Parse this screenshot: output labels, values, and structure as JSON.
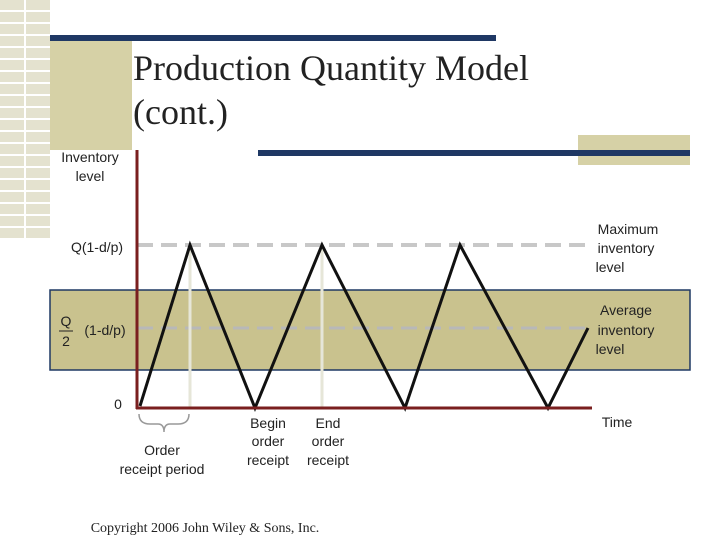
{
  "title": {
    "lines": [
      "Production Quantity Model",
      "(cont.)"
    ]
  },
  "y_axis": {
    "label": [
      "Inventory",
      "level"
    ]
  },
  "levels": {
    "max": "Q(1-d/p)",
    "avg_numerator": "Q",
    "avg_denominator": "2",
    "avg_factor": "(1-d/p)",
    "zero": "0"
  },
  "annotations": {
    "maximum": [
      "Maximum",
      "inventory",
      "level"
    ],
    "average": [
      "Average",
      "inventory",
      "level"
    ],
    "time": "Time",
    "begin": [
      "Begin",
      "order",
      "receipt"
    ],
    "end": [
      "End",
      "order",
      "receipt"
    ],
    "period": [
      "Order",
      "receipt period"
    ]
  },
  "footer": {
    "copyright": "Copyright 2006 John Wiley & Sons, Inc."
  }
}
